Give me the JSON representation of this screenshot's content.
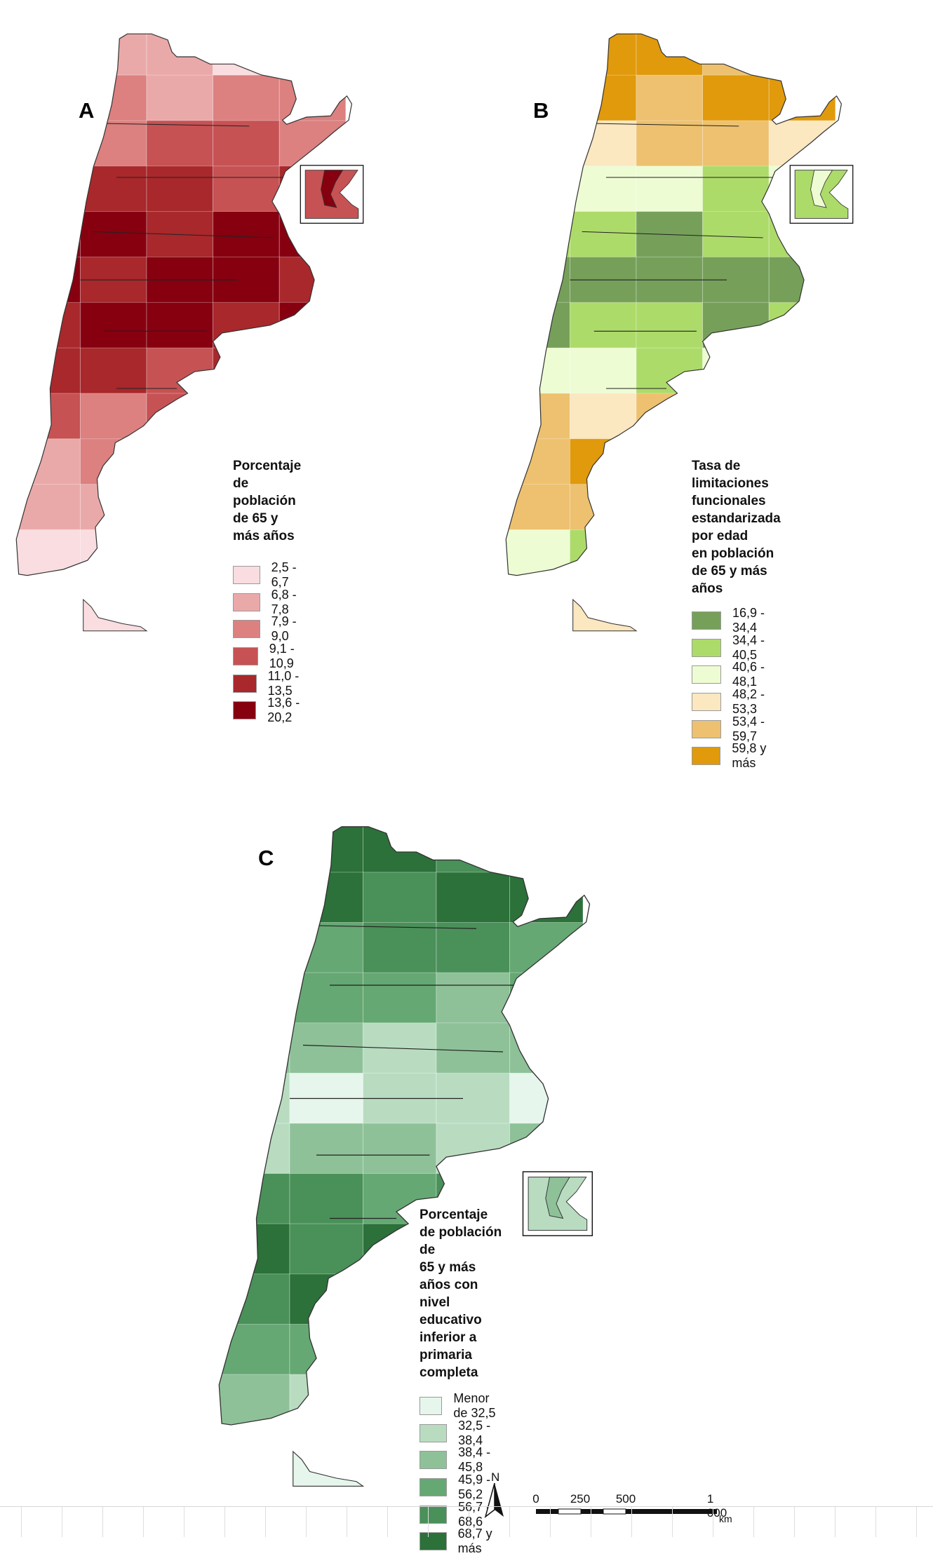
{
  "panels": [
    {
      "letter": "A",
      "legend_title": "Porcentaje de población\nde 65 y más años",
      "classes": [
        {
          "label": "2,5 - 6,7",
          "color": "#f9dde0"
        },
        {
          "label": "6,8 - 7,8",
          "color": "#eaa9a9"
        },
        {
          "label": "7,9 - 9,0",
          "color": "#dc8080"
        },
        {
          "label": "9,1 - 10,9",
          "color": "#c65254"
        },
        {
          "label": "11,0 - 13,5",
          "color": "#a8282b"
        },
        {
          "label": "13,6 - 20,2",
          "color": "#860010"
        }
      ]
    },
    {
      "letter": "B",
      "legend_title": "Tasa de limitaciones funcionales\nestandarizada por edad\nen población de 65 y más años",
      "classes": [
        {
          "label": "16,9 - 34,4",
          "color": "#76a05a"
        },
        {
          "label": "34,4 - 40,5",
          "color": "#addb6a"
        },
        {
          "label": "40,6 - 48,1",
          "color": "#eefcd4"
        },
        {
          "label": "48,2 - 53,3",
          "color": "#fbe7c0"
        },
        {
          "label": "53,4 - 59,7",
          "color": "#edc16f"
        },
        {
          "label": "59,8 y más",
          "color": "#e09a0c"
        }
      ]
    },
    {
      "letter": "C",
      "legend_title": "Porcentaje de población de\n65 y más años con nivel educativo\ninferior a primaria completa",
      "classes": [
        {
          "label": "Menor de 32,5",
          "color": "#e6f6ec"
        },
        {
          "label": "32,5 - 38,4",
          "color": "#b9dcc1"
        },
        {
          "label": "38,4 - 45,8",
          "color": "#8ec198"
        },
        {
          "label": "45,9 - 56,2",
          "color": "#65a873"
        },
        {
          "label": "56,7 - 68,6",
          "color": "#4a9059"
        },
        {
          "label": "68,7 y más",
          "color": "#2b7139"
        }
      ]
    }
  ],
  "scale": {
    "ticks": [
      "0",
      "250",
      "500",
      "1 000"
    ],
    "unit": "km",
    "north_label": "N"
  }
}
